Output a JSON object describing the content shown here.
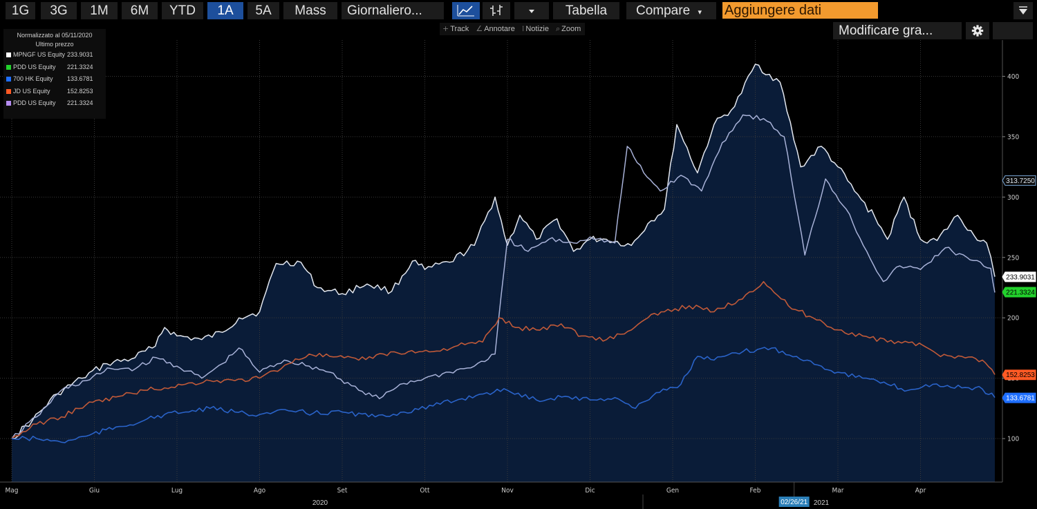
{
  "toolbar": {
    "periods": [
      {
        "label": "1G",
        "active": false
      },
      {
        "label": "3G",
        "active": false
      },
      {
        "label": "1M",
        "active": false
      },
      {
        "label": "6M",
        "active": false
      },
      {
        "label": "YTD",
        "active": false
      },
      {
        "label": "1A",
        "active": true
      },
      {
        "label": "5A",
        "active": false
      },
      {
        "label": "Mass",
        "active": false
      }
    ],
    "frequency": "Giornaliero...",
    "table_label": "Tabella",
    "compare_label": "Compare",
    "add_data_placeholder": "Aggiungere dati",
    "line_chart_icon": "line-chart-icon",
    "bar_chart_icon": "ohlc-bars-icon"
  },
  "subtoolbar": {
    "items": [
      {
        "glyph": "+",
        "label": "Track"
      },
      {
        "glyph": "∠",
        "label": "Annotare"
      },
      {
        "glyph": "⁞",
        "label": "Notizie"
      },
      {
        "glyph": "⌕",
        "label": "Zoom"
      }
    ],
    "edit_label": "Modificare gra...",
    "settings_icon": "gear-icon"
  },
  "legend": {
    "title_line1": "Normalizzato al 05/11/2020",
    "title_line2": "Ultimo prezzo",
    "entries": [
      {
        "name": "MPNGF US Equity",
        "value": "233.9031",
        "color": "#ffffff"
      },
      {
        "name": "PDD US Equity",
        "value": "221.3324",
        "color": "#22d12c"
      },
      {
        "name": "700 HK Equity",
        "value": "133.6781",
        "color": "#1f6fff"
      },
      {
        "name": "JD US Equity",
        "value": "152.8253",
        "color": "#ff5a24"
      },
      {
        "name": "PDD US Equity",
        "value": "221.3324",
        "color": "#b58cf0"
      }
    ]
  },
  "chart_data": {
    "type": "area",
    "title": "",
    "xlabel": "",
    "ylabel": "",
    "ylim": [
      64,
      430
    ],
    "yticks": [
      "100",
      "150",
      "200",
      "250",
      "300",
      "350",
      "400"
    ],
    "xticks": [
      "Mag",
      "Giu",
      "Lug",
      "Ago",
      "Set",
      "Ott",
      "Nov",
      "Dic",
      "Gen",
      "Feb",
      "Mar",
      "Apr"
    ],
    "years": [
      "2020",
      "2021"
    ],
    "cursor_date": "02/26/21",
    "cursor_value": "313.7250",
    "grid": true,
    "legend_position": "top-left",
    "series": [
      {
        "name": "MPNGF US Equity",
        "color": "#e4e8f0",
        "fill": true,
        "last": "233.9031",
        "points": [
          [
            "Mag",
            0.0,
            100
          ],
          [
            "Mag",
            0.25,
            115
          ],
          [
            "Mag",
            0.55,
            137
          ],
          [
            "Mag",
            0.85,
            150
          ],
          [
            "Giu",
            0.15,
            162
          ],
          [
            "Giu",
            0.45,
            166
          ],
          [
            "Giu",
            0.7,
            175
          ],
          [
            "Giu",
            0.85,
            192
          ],
          [
            "Lug",
            0.0,
            185
          ],
          [
            "Lug",
            0.3,
            182
          ],
          [
            "Lug",
            0.55,
            188
          ],
          [
            "Lug",
            0.75,
            200
          ],
          [
            "Ago",
            0.0,
            205
          ],
          [
            "Ago",
            0.2,
            245
          ],
          [
            "Ago",
            0.5,
            246
          ],
          [
            "Ago",
            0.7,
            225
          ],
          [
            "Set",
            0.0,
            220
          ],
          [
            "Set",
            0.3,
            228
          ],
          [
            "Set",
            0.6,
            222
          ],
          [
            "Set",
            0.85,
            247
          ],
          [
            "Ott",
            0.0,
            240
          ],
          [
            "Ott",
            0.3,
            246
          ],
          [
            "Ott",
            0.6,
            260
          ],
          [
            "Ott",
            0.85,
            300
          ],
          [
            "Nov",
            0.0,
            260
          ],
          [
            "Nov",
            0.15,
            285
          ],
          [
            "Nov",
            0.35,
            265
          ],
          [
            "Nov",
            0.6,
            282
          ],
          [
            "Nov",
            0.8,
            255
          ],
          [
            "Dic",
            0.0,
            265
          ],
          [
            "Dic",
            0.2,
            265
          ],
          [
            "Dic",
            0.5,
            260
          ],
          [
            "Dic",
            0.7,
            278
          ],
          [
            "Dic",
            0.9,
            290
          ],
          [
            "Gen",
            0.05,
            360
          ],
          [
            "Gen",
            0.3,
            320
          ],
          [
            "Gen",
            0.5,
            360
          ],
          [
            "Gen",
            0.75,
            375
          ],
          [
            "Feb",
            0.0,
            410
          ],
          [
            "Feb",
            0.3,
            395
          ],
          [
            "Feb",
            0.55,
            325
          ],
          [
            "Feb",
            0.8,
            342
          ],
          [
            "Mar",
            0.0,
            325
          ],
          [
            "Mar",
            0.2,
            305
          ],
          [
            "Mar",
            0.45,
            283
          ],
          [
            "Mar",
            0.6,
            265
          ],
          [
            "Mar",
            0.8,
            300
          ],
          [
            "Apr",
            0.0,
            265
          ],
          [
            "Apr",
            0.2,
            264
          ],
          [
            "Apr",
            0.45,
            285
          ],
          [
            "Apr",
            0.65,
            268
          ],
          [
            "Apr",
            0.8,
            262
          ],
          [
            "Apr",
            0.9,
            234
          ]
        ]
      },
      {
        "name": "PDD US Equity",
        "color": "#a8b2d8",
        "fill": false,
        "last": "221.3324",
        "points": [
          [
            "Mag",
            0.0,
            100
          ],
          [
            "Mag",
            0.3,
            118
          ],
          [
            "Mag",
            0.6,
            140
          ],
          [
            "Mag",
            0.9,
            148
          ],
          [
            "Giu",
            0.2,
            158
          ],
          [
            "Giu",
            0.5,
            158
          ],
          [
            "Giu",
            0.75,
            167
          ],
          [
            "Lug",
            0.0,
            160
          ],
          [
            "Lug",
            0.3,
            150
          ],
          [
            "Lug",
            0.55,
            162
          ],
          [
            "Lug",
            0.75,
            175
          ],
          [
            "Ago",
            0.0,
            155
          ],
          [
            "Ago",
            0.3,
            165
          ],
          [
            "Ago",
            0.6,
            160
          ],
          [
            "Ago",
            0.85,
            155
          ],
          [
            "Set",
            0.2,
            140
          ],
          [
            "Set",
            0.45,
            133
          ],
          [
            "Set",
            0.7,
            145
          ],
          [
            "Ott",
            0.0,
            150
          ],
          [
            "Ott",
            0.3,
            155
          ],
          [
            "Ott",
            0.6,
            160
          ],
          [
            "Ott",
            0.85,
            170
          ],
          [
            "Nov",
            0.0,
            265
          ],
          [
            "Nov",
            0.25,
            255
          ],
          [
            "Nov",
            0.5,
            265
          ],
          [
            "Nov",
            0.8,
            262
          ],
          [
            "Dic",
            0.0,
            267
          ],
          [
            "Dic",
            0.3,
            262
          ],
          [
            "Dic",
            0.45,
            342
          ],
          [
            "Dic",
            0.65,
            320
          ],
          [
            "Dic",
            0.85,
            305
          ],
          [
            "Gen",
            0.1,
            318
          ],
          [
            "Gen",
            0.35,
            305
          ],
          [
            "Gen",
            0.6,
            345
          ],
          [
            "Gen",
            0.85,
            368
          ],
          [
            "Feb",
            0.1,
            365
          ],
          [
            "Feb",
            0.35,
            350
          ],
          [
            "Feb",
            0.6,
            252
          ],
          [
            "Feb",
            0.85,
            315
          ],
          [
            "Mar",
            0.1,
            290
          ],
          [
            "Mar",
            0.35,
            255
          ],
          [
            "Mar",
            0.55,
            230
          ],
          [
            "Mar",
            0.75,
            243
          ],
          [
            "Apr",
            0.0,
            240
          ],
          [
            "Apr",
            0.3,
            258
          ],
          [
            "Apr",
            0.6,
            248
          ],
          [
            "Apr",
            0.85,
            241
          ],
          [
            "Apr",
            0.9,
            221
          ]
        ]
      },
      {
        "name": "JD US Equity",
        "color": "#c25a38",
        "fill": false,
        "last": "152.8253",
        "points": [
          [
            "Mag",
            0.0,
            100
          ],
          [
            "Mag",
            0.3,
            112
          ],
          [
            "Mag",
            0.6,
            118
          ],
          [
            "Mag",
            0.9,
            128
          ],
          [
            "Giu",
            0.3,
            135
          ],
          [
            "Giu",
            0.6,
            140
          ],
          [
            "Giu",
            0.85,
            142
          ],
          [
            "Lug",
            0.1,
            145
          ],
          [
            "Lug",
            0.4,
            148
          ],
          [
            "Lug",
            0.7,
            148
          ],
          [
            "Ago",
            0.0,
            150
          ],
          [
            "Ago",
            0.35,
            162
          ],
          [
            "Ago",
            0.6,
            170
          ],
          [
            "Ago",
            0.85,
            168
          ],
          [
            "Set",
            0.2,
            165
          ],
          [
            "Set",
            0.5,
            170
          ],
          [
            "Set",
            0.8,
            172
          ],
          [
            "Ott",
            0.1,
            172
          ],
          [
            "Ott",
            0.4,
            177
          ],
          [
            "Ott",
            0.7,
            180
          ],
          [
            "Ott",
            0.9,
            200
          ],
          [
            "Nov",
            0.1,
            192
          ],
          [
            "Nov",
            0.35,
            190
          ],
          [
            "Nov",
            0.65,
            195
          ],
          [
            "Nov",
            0.9,
            185
          ],
          [
            "Dic",
            0.2,
            182
          ],
          [
            "Dic",
            0.5,
            190
          ],
          [
            "Dic",
            0.7,
            200
          ],
          [
            "Dic",
            0.9,
            205
          ],
          [
            "Gen",
            0.2,
            210
          ],
          [
            "Gen",
            0.5,
            205
          ],
          [
            "Gen",
            0.8,
            215
          ],
          [
            "Feb",
            0.1,
            230
          ],
          [
            "Feb",
            0.4,
            210
          ],
          [
            "Feb",
            0.7,
            200
          ],
          [
            "Mar",
            0.0,
            190
          ],
          [
            "Mar",
            0.3,
            185
          ],
          [
            "Mar",
            0.6,
            180
          ],
          [
            "Mar",
            0.9,
            180
          ],
          [
            "Apr",
            0.2,
            170
          ],
          [
            "Apr",
            0.5,
            168
          ],
          [
            "Apr",
            0.75,
            165
          ],
          [
            "Apr",
            0.9,
            153
          ]
        ]
      },
      {
        "name": "700 HK Equity",
        "color": "#2a63c9",
        "fill": false,
        "last": "133.6781",
        "points": [
          [
            "Mag",
            0.0,
            100
          ],
          [
            "Mag",
            0.3,
            100
          ],
          [
            "Mag",
            0.6,
            97
          ],
          [
            "Mag",
            0.9,
            102
          ],
          [
            "Giu",
            0.3,
            110
          ],
          [
            "Giu",
            0.6,
            115
          ],
          [
            "Giu",
            0.85,
            120
          ],
          [
            "Lug",
            0.1,
            122
          ],
          [
            "Lug",
            0.4,
            125
          ],
          [
            "Lug",
            0.7,
            122
          ],
          [
            "Ago",
            0.0,
            120
          ],
          [
            "Ago",
            0.35,
            123
          ],
          [
            "Ago",
            0.65,
            121
          ],
          [
            "Set",
            0.0,
            122
          ],
          [
            "Set",
            0.4,
            118
          ],
          [
            "Set",
            0.75,
            122
          ],
          [
            "Ott",
            0.1,
            127
          ],
          [
            "Ott",
            0.45,
            133
          ],
          [
            "Ott",
            0.75,
            138
          ],
          [
            "Nov",
            0.0,
            140
          ],
          [
            "Nov",
            0.35,
            132
          ],
          [
            "Nov",
            0.7,
            135
          ],
          [
            "Dic",
            0.0,
            132
          ],
          [
            "Dic",
            0.3,
            134
          ],
          [
            "Dic",
            0.55,
            125
          ],
          [
            "Dic",
            0.8,
            138
          ],
          [
            "Gen",
            0.1,
            145
          ],
          [
            "Gen",
            0.3,
            168
          ],
          [
            "Gen",
            0.5,
            165
          ],
          [
            "Gen",
            0.85,
            172
          ],
          [
            "Feb",
            0.2,
            175
          ],
          [
            "Feb",
            0.5,
            168
          ],
          [
            "Feb",
            0.8,
            160
          ],
          [
            "Mar",
            0.0,
            155
          ],
          [
            "Mar",
            0.3,
            150
          ],
          [
            "Mar",
            0.6,
            145
          ],
          [
            "Mar",
            0.85,
            140
          ],
          [
            "Apr",
            0.15,
            145
          ],
          [
            "Apr",
            0.5,
            142
          ],
          [
            "Apr",
            0.75,
            141
          ],
          [
            "Apr",
            0.9,
            134
          ]
        ]
      }
    ]
  }
}
